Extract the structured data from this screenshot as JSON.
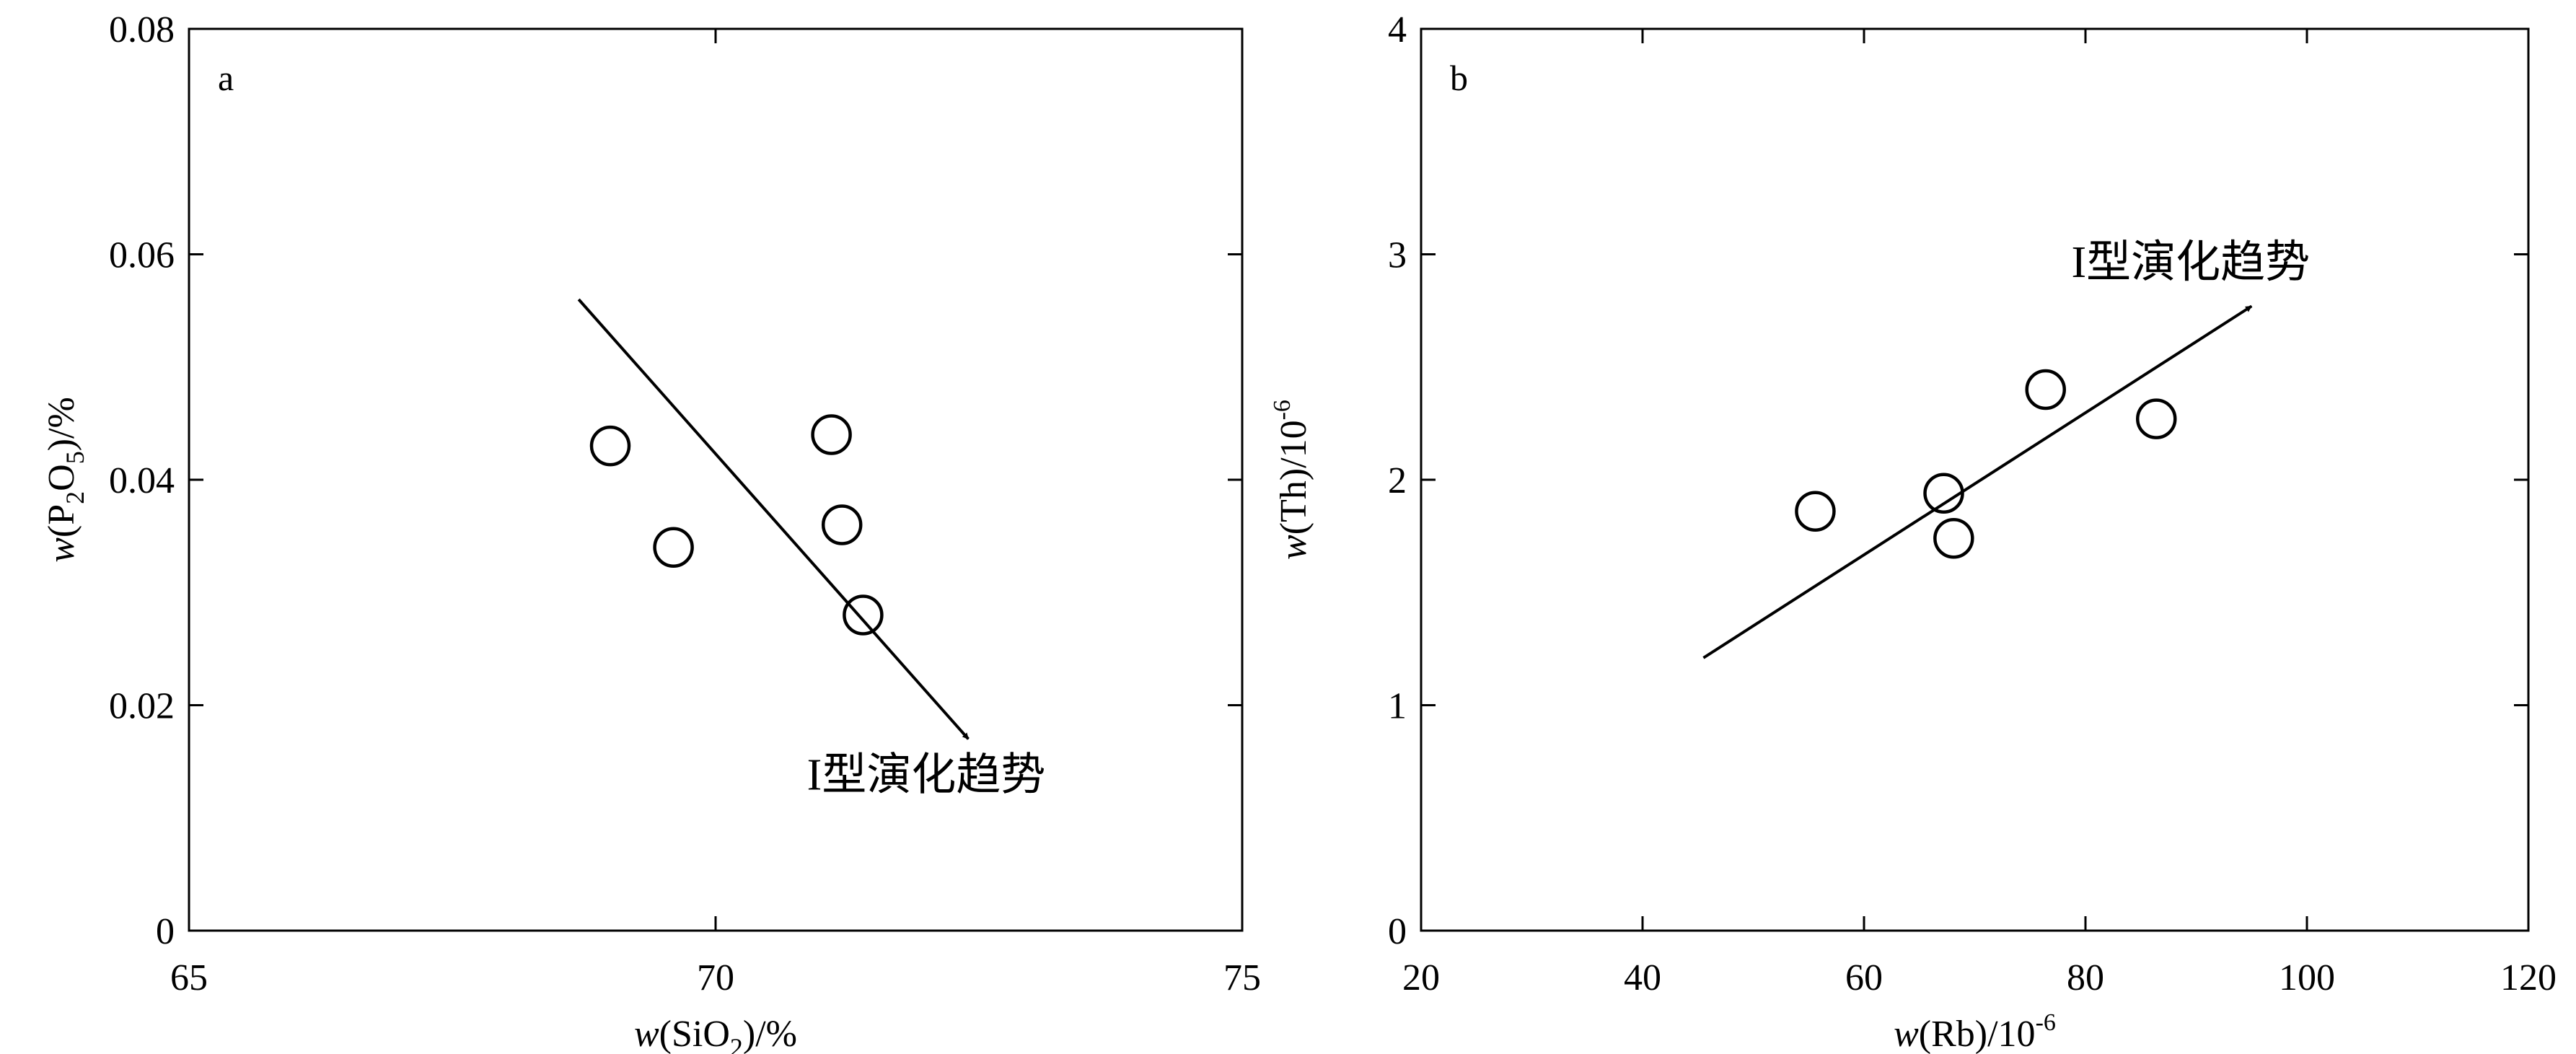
{
  "chart_data": [
    {
      "type": "scatter",
      "panel_label": "a",
      "xlabel": {
        "var": "w",
        "text": "(SiO",
        "sub": "2",
        "tail": ")/%"
      },
      "ylabel": {
        "var": "w",
        "text": "(P",
        "sub1": "2",
        "mid": "O",
        "sub2": "5",
        "tail": ")/%"
      },
      "xlim": [
        65,
        75
      ],
      "ylim": [
        0,
        0.08
      ],
      "xticks": [
        65,
        70,
        75
      ],
      "xtick_labels": [
        "65",
        "70",
        "75"
      ],
      "yticks": [
        0,
        0.02,
        0.04,
        0.06,
        0.08
      ],
      "ytick_labels": [
        "0",
        "0.02",
        "0.04",
        "0.06",
        "0.08"
      ],
      "grid": false,
      "points": [
        {
          "x": 69.0,
          "y": 0.043
        },
        {
          "x": 69.6,
          "y": 0.034
        },
        {
          "x": 71.1,
          "y": 0.044
        },
        {
          "x": 71.2,
          "y": 0.036
        },
        {
          "x": 71.4,
          "y": 0.028
        }
      ],
      "trend_arrow": {
        "from": [
          68.7,
          0.056
        ],
        "to": [
          72.4,
          0.017
        ]
      },
      "annotation": "I型演化趋势",
      "annotation_anchor": [
        72.0,
        0.0125
      ]
    },
    {
      "type": "scatter",
      "panel_label": "b",
      "xlabel": {
        "var": "w",
        "text": "(Rb)/10",
        "sup": "-6"
      },
      "ylabel": {
        "var": "w",
        "text": "(Th)/10",
        "sup": "-6"
      },
      "xlim": [
        20,
        120
      ],
      "ylim": [
        0,
        4
      ],
      "xticks": [
        20,
        40,
        60,
        80,
        100,
        120
      ],
      "xtick_labels": [
        "20",
        "40",
        "60",
        "80",
        "100",
        "120"
      ],
      "yticks": [
        0,
        1,
        2,
        3,
        4
      ],
      "ytick_labels": [
        "0",
        "1",
        "2",
        "3",
        "4"
      ],
      "grid": false,
      "points": [
        {
          "x": 55.6,
          "y": 1.86
        },
        {
          "x": 67.2,
          "y": 1.94
        },
        {
          "x": 68.1,
          "y": 1.74
        },
        {
          "x": 76.4,
          "y": 2.4
        },
        {
          "x": 86.4,
          "y": 2.27
        }
      ],
      "trend_arrow": {
        "from": [
          45.5,
          1.21
        ],
        "to": [
          95.0,
          2.77
        ]
      },
      "annotation": "I型演化趋势",
      "annotation_anchor": [
        89.5,
        2.9
      ]
    }
  ]
}
